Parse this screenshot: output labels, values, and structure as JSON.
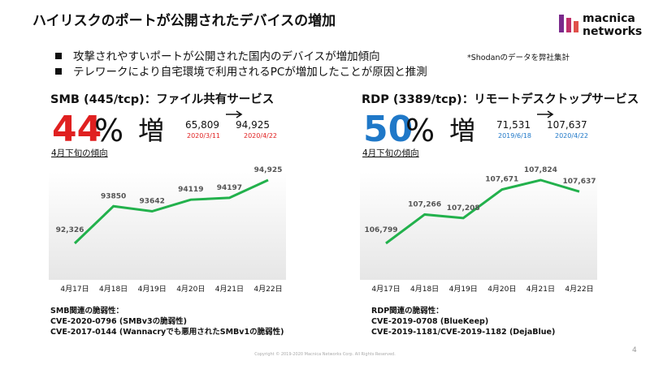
{
  "header": {
    "title": "ハイリスクのポートが公開されたデバイスの増加",
    "logo_top": "macnica",
    "logo_bottom": "networks"
  },
  "bullets": [
    "攻撃されやすいポートが公開された国内のデバイスが増加傾向",
    "テレワークにより自宅環境で利用されるPCが増加したことが原因と推測"
  ],
  "note": "*Shodanのデータを弊社集計",
  "panels": [
    {
      "heading": "SMB (445/tcp)：ファイル共有サービス",
      "percent": "44",
      "percent_unit": "%",
      "increase": "増",
      "from_value": "65,809",
      "from_date": "2020/3/11",
      "to_value": "94,925",
      "to_date": "2020/4/22",
      "trend_label": "4月下旬の傾向",
      "vuln_lines": [
        "SMB関連の脆弱性：",
        "CVE-2020-0796 (SMBv3の脆弱性)",
        "CVE-2017-0144 (Wannacryでも悪用されたSMBv1の脆弱性)"
      ]
    },
    {
      "heading": "RDP (3389/tcp)：リモートデスクトップサービス",
      "percent": "50",
      "percent_unit": "%",
      "increase": "増",
      "from_value": "71,531",
      "from_date": "2019/6/18",
      "to_value": "107,637",
      "to_date": "2020/4/22",
      "trend_label": "4月下旬の傾向",
      "vuln_lines": [
        "RDP関連の脆弱性：",
        "CVE-2019-0708 (BlueKeep)",
        "CVE-2019-1181/CVE-2019-1182 (DejaBlue)"
      ]
    }
  ],
  "chart_data": [
    {
      "type": "line",
      "categories": [
        "4月17日",
        "4月18日",
        "4月19日",
        "4月20日",
        "4月21日",
        "4月22日"
      ],
      "values": [
        92326,
        93850,
        93642,
        94119,
        94197,
        94925
      ],
      "value_labels": [
        "92,326",
        "93850",
        "93642",
        "94119",
        "94197",
        "94,925"
      ],
      "color": "#22b14c",
      "accent": "#e02020"
    },
    {
      "type": "line",
      "categories": [
        "4月17日",
        "4月18日",
        "4月19日",
        "4月20日",
        "4月21日",
        "4月22日"
      ],
      "values": [
        106799,
        107266,
        107208,
        107671,
        107824,
        107637
      ],
      "value_labels": [
        "106,799",
        "107,266",
        "107,208",
        "107,671",
        "107,824",
        "107,637"
      ],
      "color": "#22b14c",
      "accent": "#1f78c8"
    }
  ],
  "footer": {
    "copyright": "Copyright © 2019-2020 Macnica Networks Corp. All Rights Reserved.",
    "page": "4"
  }
}
